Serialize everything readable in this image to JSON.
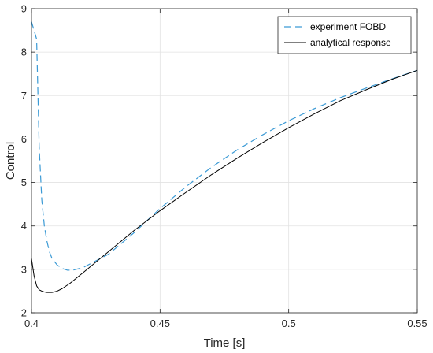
{
  "chart_data": {
    "type": "line",
    "title": "",
    "xlabel": "Time [s]",
    "ylabel": "Control",
    "xlim": [
      0.4,
      0.55
    ],
    "ylim": [
      2,
      9
    ],
    "xticks": [
      0.4,
      0.45,
      0.5,
      0.55
    ],
    "xtick_labels": [
      "0.4",
      "0.45",
      "0.5",
      "0.55"
    ],
    "yticks": [
      2,
      3,
      4,
      5,
      6,
      7,
      8,
      9
    ],
    "ytick_labels": [
      "2",
      "3",
      "4",
      "5",
      "6",
      "7",
      "8",
      "9"
    ],
    "grid": true,
    "legend_position": "top-right",
    "series": [
      {
        "name": "experiment FOBD",
        "color": "#3b9ad5",
        "style": "dashed",
        "x": [
          0.4,
          0.401,
          0.402,
          0.403,
          0.404,
          0.405,
          0.406,
          0.407,
          0.408,
          0.41,
          0.412,
          0.414,
          0.416,
          0.42,
          0.43,
          0.44,
          0.45,
          0.46,
          0.47,
          0.48,
          0.49,
          0.5,
          0.51,
          0.52,
          0.53,
          0.54,
          0.55
        ],
        "y": [
          8.7,
          8.5,
          8.3,
          5.8,
          4.6,
          4.0,
          3.65,
          3.4,
          3.25,
          3.1,
          3.02,
          2.98,
          2.98,
          3.04,
          3.35,
          3.85,
          4.4,
          4.9,
          5.35,
          5.75,
          6.1,
          6.42,
          6.7,
          6.95,
          7.17,
          7.38,
          7.58
        ]
      },
      {
        "name": "analytical response",
        "color": "#000000",
        "style": "solid",
        "x": [
          0.4,
          0.401,
          0.402,
          0.403,
          0.404,
          0.405,
          0.406,
          0.407,
          0.408,
          0.41,
          0.412,
          0.415,
          0.42,
          0.43,
          0.44,
          0.45,
          0.46,
          0.47,
          0.48,
          0.49,
          0.5,
          0.51,
          0.52,
          0.53,
          0.54,
          0.55
        ],
        "y": [
          3.25,
          2.85,
          2.62,
          2.53,
          2.5,
          2.48,
          2.47,
          2.47,
          2.47,
          2.5,
          2.56,
          2.68,
          2.92,
          3.41,
          3.9,
          4.35,
          4.77,
          5.18,
          5.56,
          5.92,
          6.26,
          6.58,
          6.88,
          7.13,
          7.37,
          7.58
        ]
      }
    ]
  }
}
